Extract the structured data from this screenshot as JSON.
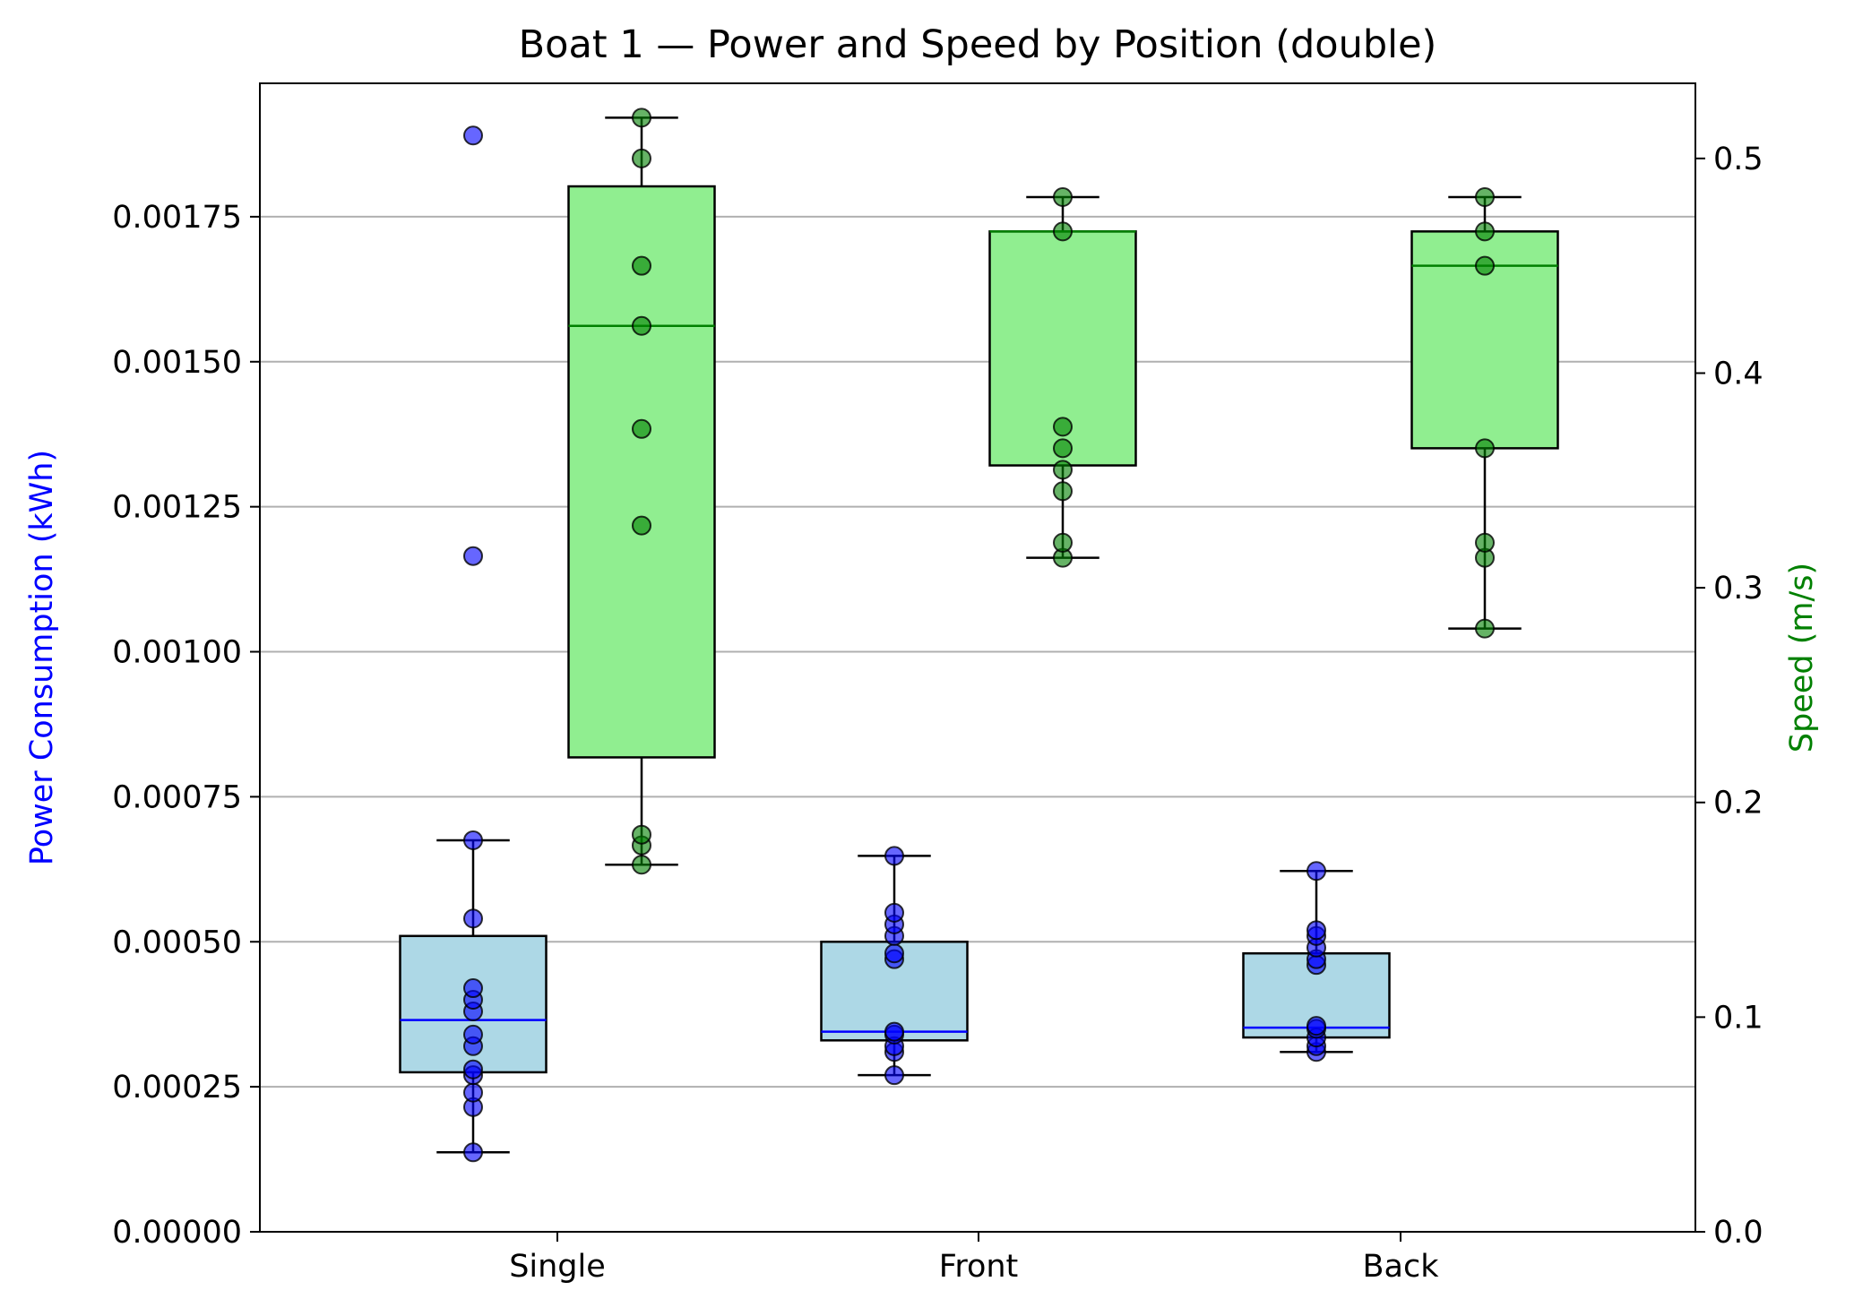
{
  "chart_data": {
    "type": "box",
    "title": "Boat 1 — Power and Speed by Position (double)",
    "categories": [
      "Single",
      "Front",
      "Back"
    ],
    "ylabel_left": "Power Consumption (kWh)",
    "ylabel_right": "Speed (m/s)",
    "ylim_left": [
      0,
      0.00198
    ],
    "ylim_right": [
      0,
      0.535
    ],
    "yticks_left": [
      "0.00000",
      "0.00025",
      "0.00050",
      "0.00075",
      "0.00100",
      "0.00125",
      "0.00150",
      "0.00175"
    ],
    "yticks_right": [
      "0.0",
      "0.1",
      "0.2",
      "0.3",
      "0.4",
      "0.5"
    ],
    "grid": "horizontal",
    "colors": {
      "power_box": "#add8e6",
      "power_median": "#0000ff",
      "power_points": "#0000ff",
      "speed_box": "#90ee90",
      "speed_median": "#008000",
      "speed_points": "#008000",
      "left_label": "#0000ff",
      "right_label": "#008000"
    },
    "series": [
      {
        "axis": "left",
        "boxes": [
          {
            "category": "Single",
            "whisker_low": 0.000137,
            "q1": 0.000275,
            "median": 0.000365,
            "q3": 0.00051,
            "whisker_high": 0.000675,
            "points": [
              0.000137,
              0.000215,
              0.00024,
              0.00027,
              0.00028,
              0.00032,
              0.00034,
              0.00038,
              0.0004,
              0.00042,
              0.00054,
              0.000675,
              0.001165,
              0.00189
            ]
          },
          {
            "category": "Front",
            "whisker_low": 0.00027,
            "q1": 0.00033,
            "median": 0.000345,
            "q3": 0.0005,
            "whisker_high": 0.000648,
            "points": [
              0.00027,
              0.00031,
              0.00032,
              0.00034,
              0.000345,
              0.00047,
              0.00048,
              0.00051,
              0.00053,
              0.00055,
              0.000648
            ]
          },
          {
            "category": "Back",
            "whisker_low": 0.00031,
            "q1": 0.000335,
            "median": 0.000352,
            "q3": 0.00048,
            "whisker_high": 0.000622,
            "points": [
              0.00031,
              0.00032,
              0.000335,
              0.00035,
              0.000355,
              0.00046,
              0.00047,
              0.00049,
              0.00051,
              0.00052,
              0.000622
            ]
          }
        ]
      },
      {
        "axis": "right",
        "boxes": [
          {
            "category": "Single",
            "whisker_low": 0.171,
            "q1": 0.221,
            "median": 0.422,
            "q3": 0.487,
            "whisker_high": 0.519,
            "points": [
              0.171,
              0.18,
              0.185,
              0.329,
              0.374,
              0.422,
              0.45,
              0.5,
              0.519
            ]
          },
          {
            "category": "Front",
            "whisker_low": 0.314,
            "q1": 0.357,
            "median": 0.466,
            "q3": 0.466,
            "whisker_high": 0.482,
            "points": [
              0.314,
              0.321,
              0.345,
              0.355,
              0.365,
              0.375,
              0.466,
              0.482
            ]
          },
          {
            "category": "Back",
            "whisker_low": 0.281,
            "q1": 0.365,
            "median": 0.45,
            "q3": 0.466,
            "whisker_high": 0.482,
            "points": [
              0.281,
              0.314,
              0.321,
              0.365,
              0.45,
              0.466,
              0.482
            ]
          }
        ]
      }
    ]
  }
}
